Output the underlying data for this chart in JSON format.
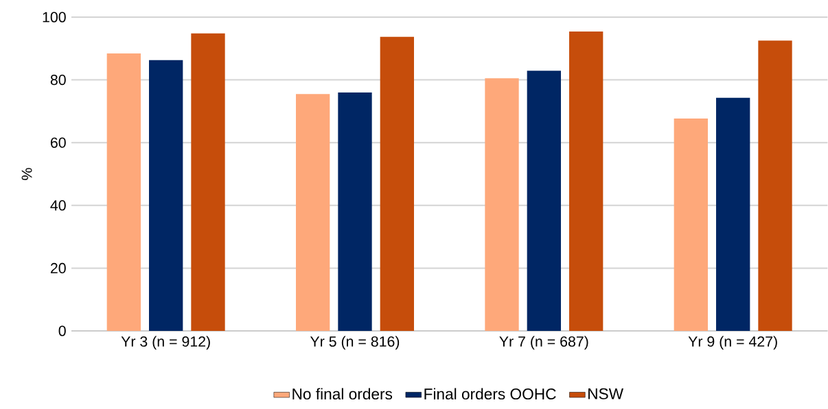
{
  "chart_data": {
    "type": "bar",
    "ylabel": "%",
    "categories": [
      "Yr 3 (n = 912)",
      "Yr 5 (n = 816)",
      "Yr 7 (n = 687)",
      "Yr 9 (n = 427)"
    ],
    "series": [
      {
        "name": "No final orders",
        "color": "#fea87a",
        "values": [
          88.4,
          75.5,
          80.5,
          67.7
        ]
      },
      {
        "name": "Final orders OOHC",
        "color": "#002664",
        "values": [
          86.3,
          76.0,
          82.9,
          74.3
        ]
      },
      {
        "name": "NSW",
        "color": "#c64d0b",
        "values": [
          94.8,
          93.7,
          95.4,
          92.5
        ]
      }
    ],
    "ylim": [
      0,
      100
    ],
    "yticks": [
      0,
      20,
      40,
      60,
      80,
      100
    ],
    "grid": "y",
    "legend": "bottom"
  }
}
